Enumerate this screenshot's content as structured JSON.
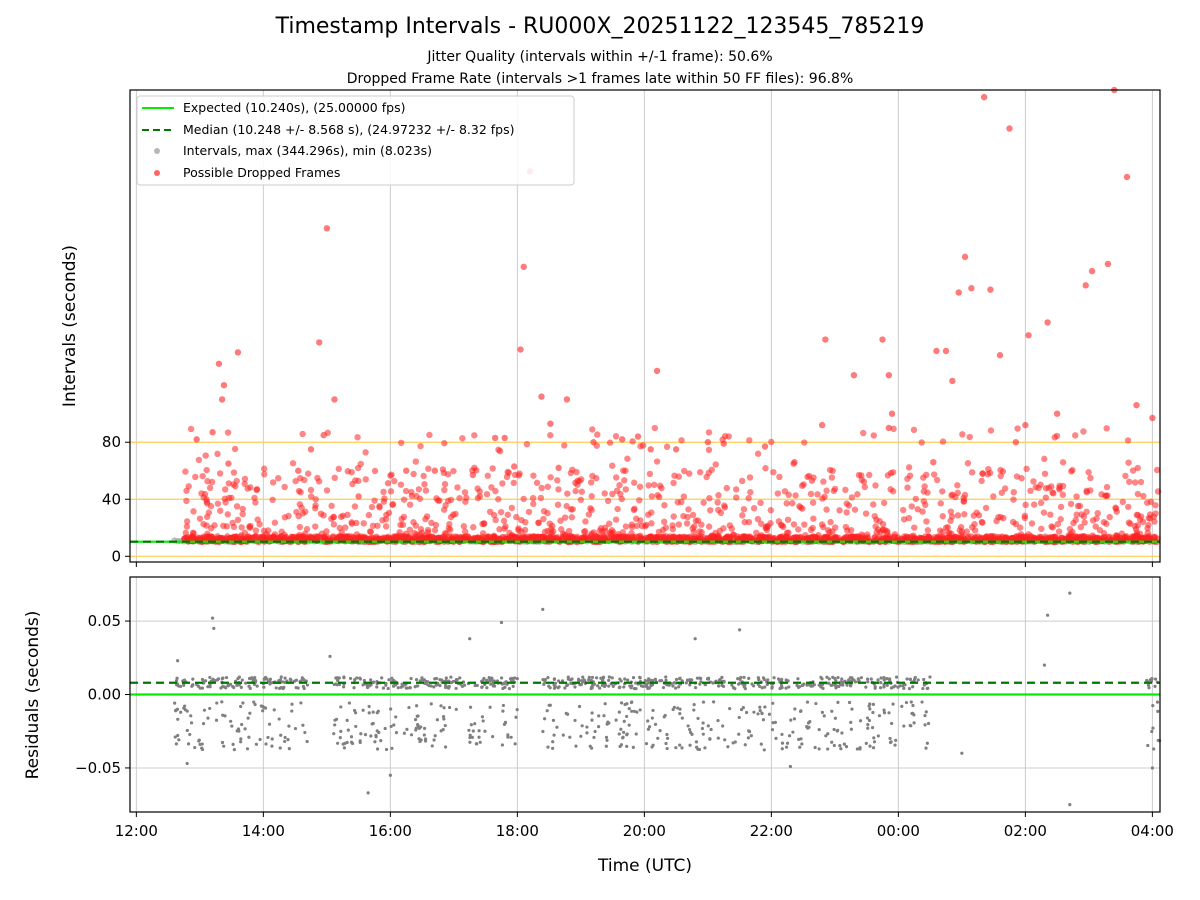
{
  "chart_data": [
    {
      "type": "scatter",
      "title": "Timestamp Intervals - RU000X_20251122_123545_785219",
      "subtitle_lines": [
        "Jitter Quality (intervals within +/-1 frame): 50.6%",
        "Dropped Frame Rate (intervals >1 frames late within 50 FF files): 96.8%"
      ],
      "xlabel": "",
      "ylabel": "Intervals (seconds)",
      "ylim": [
        -4,
        327
      ],
      "y_ticks": [
        0,
        40,
        80
      ],
      "x_range_hours": [
        11.9,
        28.12
      ],
      "reference_lines": [
        {
          "name": "Expected (10.240s), (25.00000 fps)",
          "y": 10.24,
          "color": "#00ee00",
          "style": "solid"
        },
        {
          "name": "Median (10.248 +/- 8.568 s), (24.97232 +/- 8.32 fps)",
          "y": 10.248,
          "color": "#007700",
          "style": "dashed"
        }
      ],
      "threshold_lines": [
        0,
        40,
        80
      ],
      "threshold_color": "#ffcc55",
      "series": [
        {
          "name": "Intervals, max (344.296s), min (8.023s)",
          "color": "#999999",
          "marker": "circle"
        },
        {
          "name": "Possible Dropped Frames",
          "color": "#ff2222",
          "marker": "circle"
        }
      ],
      "highlight_points": [
        {
          "x": 12.95,
          "y": 82
        },
        {
          "x": 13.2,
          "y": 87
        },
        {
          "x": 13.3,
          "y": 135
        },
        {
          "x": 13.35,
          "y": 110
        },
        {
          "x": 13.38,
          "y": 120
        },
        {
          "x": 13.45,
          "y": 65
        },
        {
          "x": 13.6,
          "y": 143
        },
        {
          "x": 13.9,
          "y": 47
        },
        {
          "x": 14.55,
          "y": 60
        },
        {
          "x": 14.75,
          "y": 75
        },
        {
          "x": 14.88,
          "y": 150
        },
        {
          "x": 14.95,
          "y": 85
        },
        {
          "x": 15.0,
          "y": 230
        },
        {
          "x": 15.12,
          "y": 110
        },
        {
          "x": 15.5,
          "y": 42
        },
        {
          "x": 16.25,
          "y": 60
        },
        {
          "x": 16.7,
          "y": 60
        },
        {
          "x": 17.3,
          "y": 57
        },
        {
          "x": 17.65,
          "y": 83
        },
        {
          "x": 17.8,
          "y": 83
        },
        {
          "x": 17.95,
          "y": 63
        },
        {
          "x": 18.05,
          "y": 145
        },
        {
          "x": 18.1,
          "y": 203
        },
        {
          "x": 18.2,
          "y": 270
        },
        {
          "x": 18.38,
          "y": 112
        },
        {
          "x": 18.52,
          "y": 93
        },
        {
          "x": 18.65,
          "y": 62
        },
        {
          "x": 18.78,
          "y": 110
        },
        {
          "x": 18.95,
          "y": 53
        },
        {
          "x": 19.2,
          "y": 80
        },
        {
          "x": 19.65,
          "y": 82
        },
        {
          "x": 19.9,
          "y": 84
        },
        {
          "x": 20.1,
          "y": 75
        },
        {
          "x": 20.2,
          "y": 130
        },
        {
          "x": 20.5,
          "y": 75
        },
        {
          "x": 21.0,
          "y": 80
        },
        {
          "x": 21.25,
          "y": 79
        },
        {
          "x": 21.9,
          "y": 77
        },
        {
          "x": 22.35,
          "y": 65
        },
        {
          "x": 22.8,
          "y": 92
        },
        {
          "x": 22.85,
          "y": 152
        },
        {
          "x": 23.3,
          "y": 127
        },
        {
          "x": 23.75,
          "y": 152
        },
        {
          "x": 23.85,
          "y": 127
        },
        {
          "x": 23.9,
          "y": 100
        },
        {
          "x": 23.85,
          "y": 90
        },
        {
          "x": 24.55,
          "y": 66
        },
        {
          "x": 24.6,
          "y": 144
        },
        {
          "x": 24.75,
          "y": 144
        },
        {
          "x": 24.85,
          "y": 123
        },
        {
          "x": 24.95,
          "y": 185
        },
        {
          "x": 25.05,
          "y": 210
        },
        {
          "x": 25.15,
          "y": 188
        },
        {
          "x": 25.35,
          "y": 322
        },
        {
          "x": 25.45,
          "y": 187
        },
        {
          "x": 25.6,
          "y": 141
        },
        {
          "x": 25.75,
          "y": 300
        },
        {
          "x": 25.85,
          "y": 80
        },
        {
          "x": 26.0,
          "y": 92
        },
        {
          "x": 26.05,
          "y": 155
        },
        {
          "x": 26.35,
          "y": 164
        },
        {
          "x": 26.5,
          "y": 100
        },
        {
          "x": 26.95,
          "y": 190
        },
        {
          "x": 27.05,
          "y": 200
        },
        {
          "x": 27.3,
          "y": 205
        },
        {
          "x": 27.4,
          "y": 327
        },
        {
          "x": 27.6,
          "y": 266
        },
        {
          "x": 27.75,
          "y": 106
        },
        {
          "x": 28.0,
          "y": 97
        }
      ]
    },
    {
      "type": "scatter",
      "title": "",
      "xlabel": "Time (UTC)",
      "ylabel": "Residuals (seconds)",
      "ylim": [
        -0.08,
        0.08
      ],
      "y_ticks": [
        0.05,
        0.0,
        -0.05
      ],
      "y_tick_labels": [
        "0.05",
        "0.00",
        "−0.05"
      ],
      "x_range_hours": [
        11.9,
        28.12
      ],
      "x_ticks": [
        12,
        14,
        16,
        18,
        20,
        22,
        24,
        26,
        28
      ],
      "x_tick_labels": [
        "12:00",
        "14:00",
        "16:00",
        "18:00",
        "20:00",
        "22:00",
        "00:00",
        "02:00",
        "04:00"
      ],
      "reference_lines": [
        {
          "y": 0.0,
          "color": "#00ee00",
          "style": "solid"
        },
        {
          "y": 0.008,
          "color": "#007700",
          "style": "dashed"
        }
      ],
      "series": [
        {
          "name": "Residuals",
          "color": "#808080",
          "marker": "dot"
        }
      ],
      "highlight_points": [
        {
          "x": 12.65,
          "y": 0.023
        },
        {
          "x": 13.2,
          "y": 0.052
        },
        {
          "x": 13.22,
          "y": 0.045
        },
        {
          "x": 12.8,
          "y": -0.047
        },
        {
          "x": 15.05,
          "y": 0.026
        },
        {
          "x": 15.65,
          "y": -0.067
        },
        {
          "x": 16.0,
          "y": -0.055
        },
        {
          "x": 17.25,
          "y": 0.038
        },
        {
          "x": 17.75,
          "y": 0.049
        },
        {
          "x": 18.4,
          "y": 0.058
        },
        {
          "x": 20.8,
          "y": 0.038
        },
        {
          "x": 21.5,
          "y": 0.044
        },
        {
          "x": 22.3,
          "y": -0.049
        },
        {
          "x": 25.0,
          "y": -0.04
        },
        {
          "x": 26.3,
          "y": 0.02
        },
        {
          "x": 26.35,
          "y": 0.054
        },
        {
          "x": 26.7,
          "y": 0.069
        },
        {
          "x": 26.7,
          "y": -0.075
        },
        {
          "x": 28.0,
          "y": -0.05
        }
      ]
    }
  ]
}
